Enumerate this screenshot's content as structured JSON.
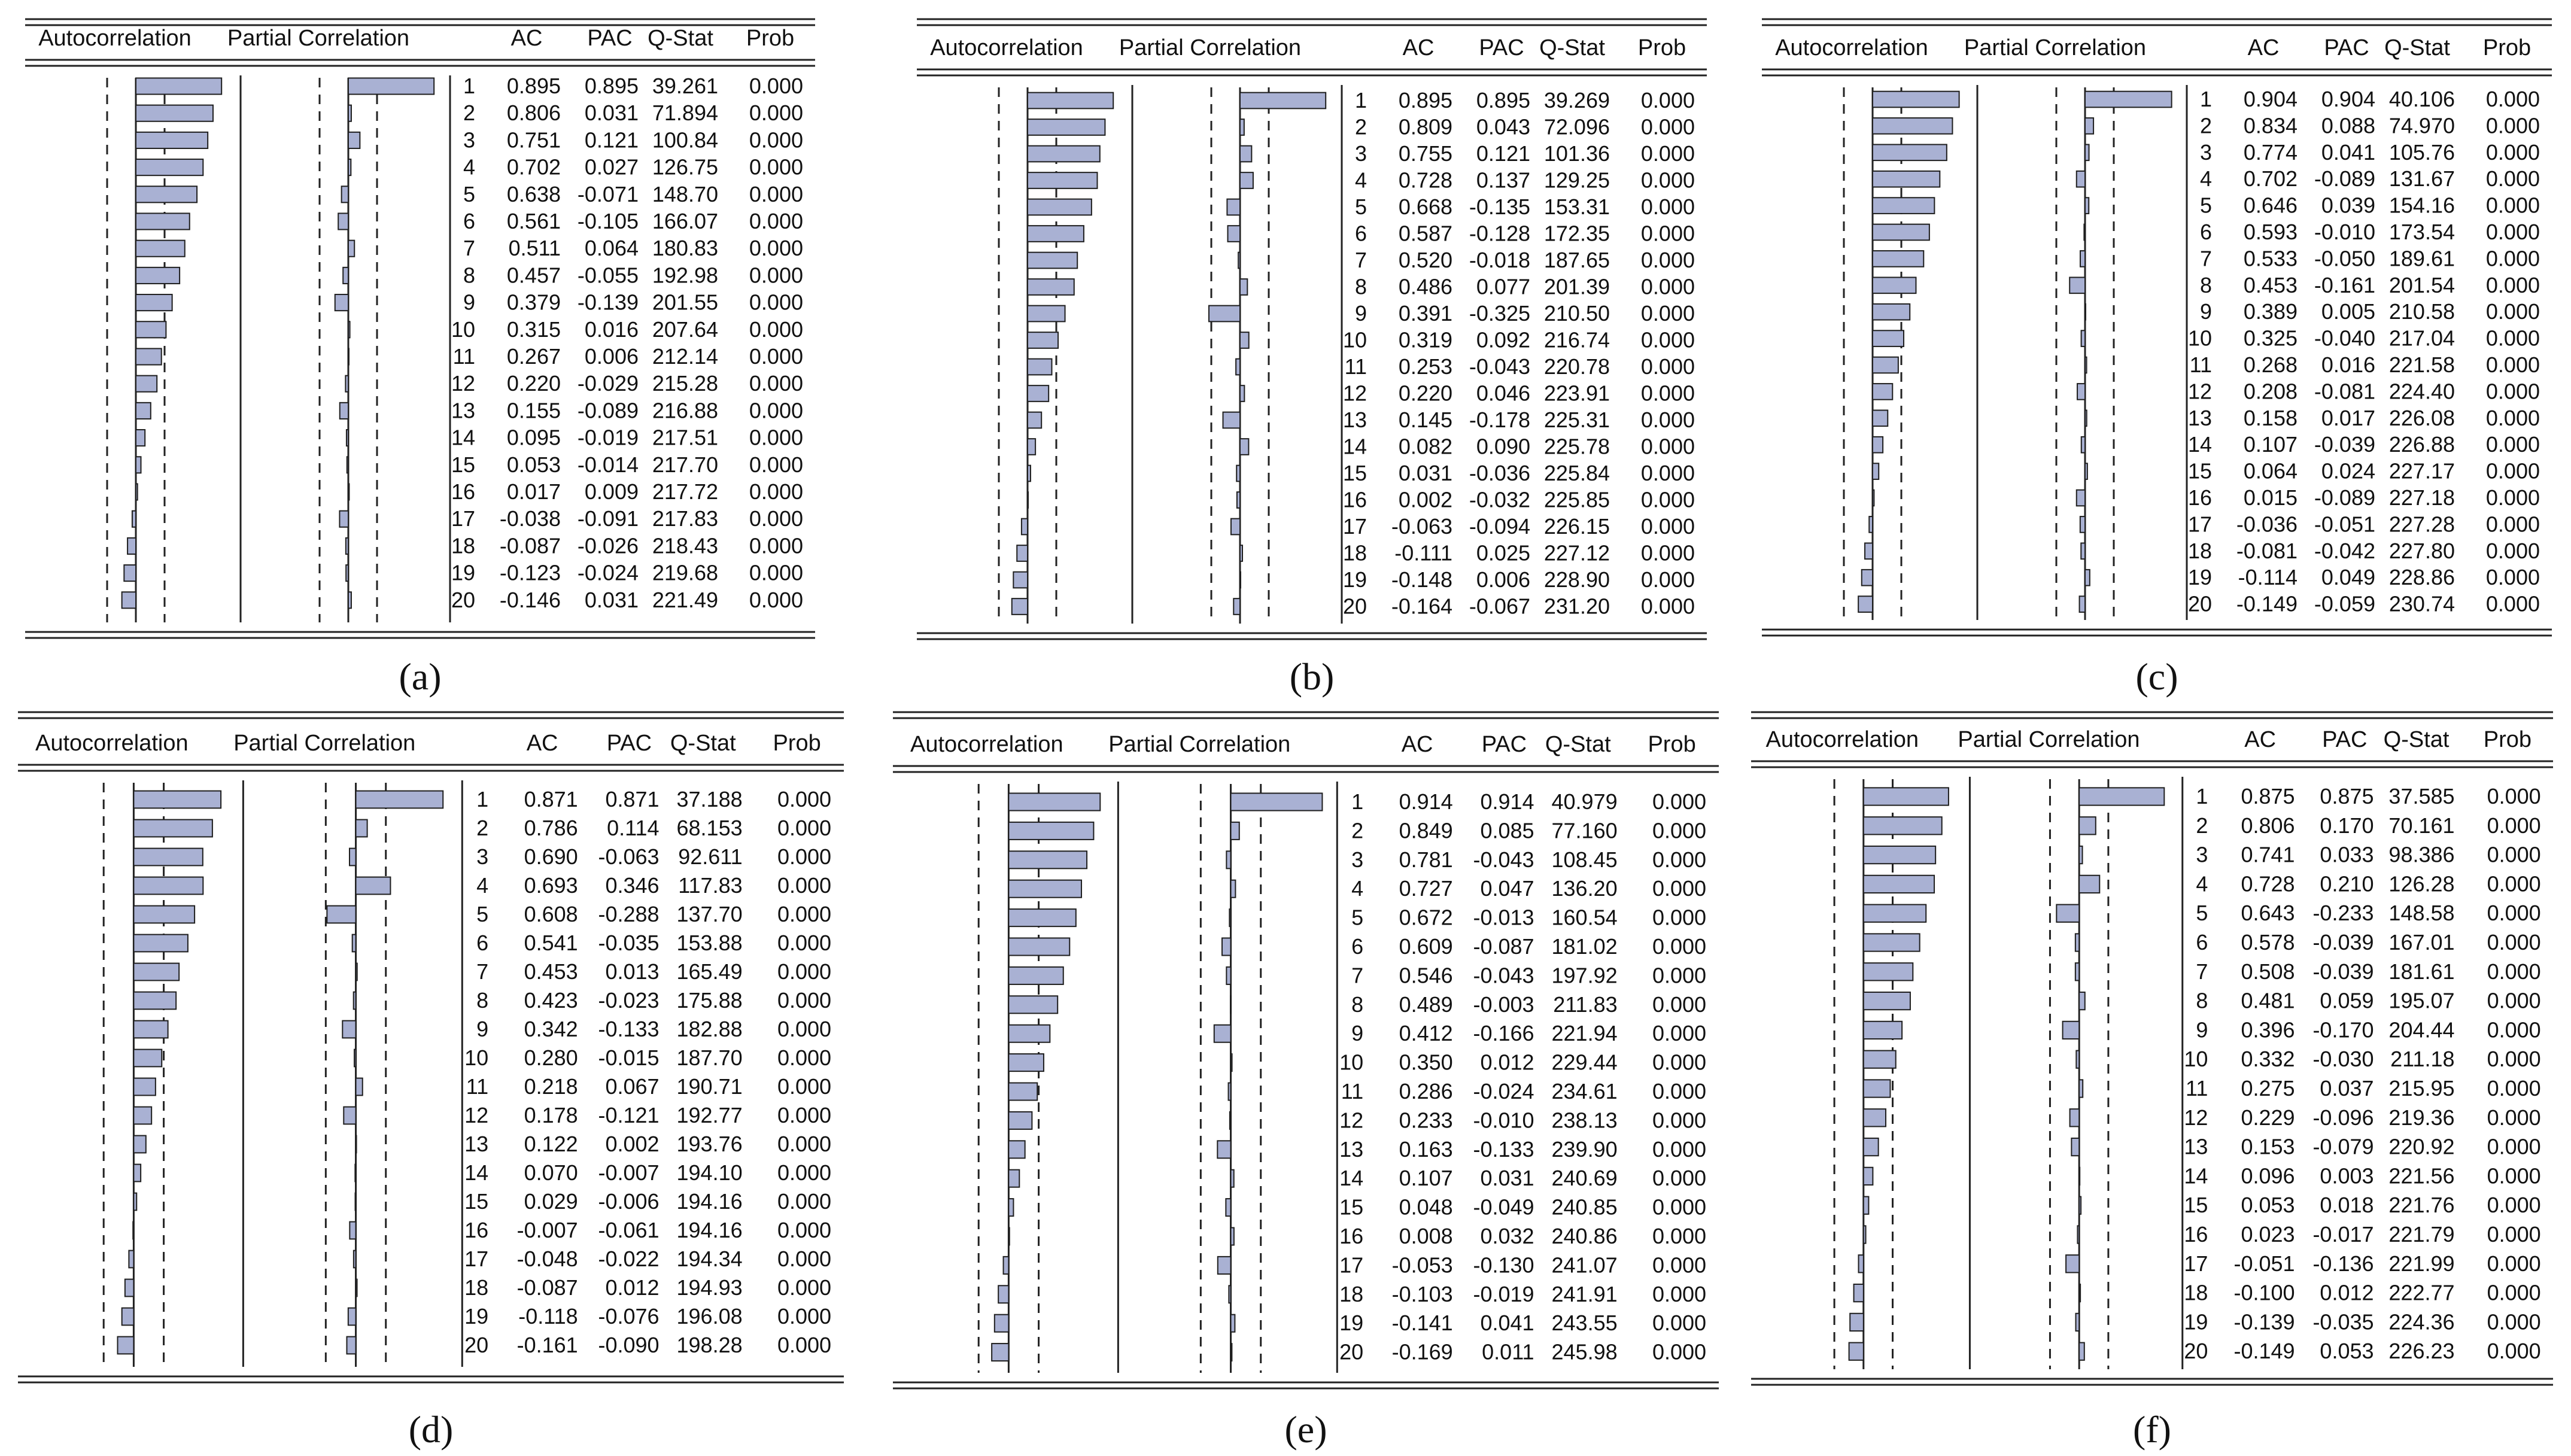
{
  "chart_data": [
    {
      "type": "table",
      "panel_label": "(a)",
      "headers": [
        "Autocorrelation",
        "Partial Correlation",
        "AC",
        "PAC",
        "Q-Stat",
        "Prob"
      ],
      "lags": [
        "1",
        "2",
        "3",
        "4",
        "5",
        "6",
        "7",
        "8",
        "9",
        "10",
        "11",
        "12",
        "13",
        "14",
        "15",
        "16",
        "17",
        "18",
        "19",
        "20"
      ],
      "ac": [
        "0.895",
        "0.806",
        "0.751",
        "0.702",
        "0.638",
        "0.561",
        "0.511",
        "0.457",
        "0.379",
        "0.315",
        "0.267",
        "0.220",
        "0.155",
        "0.095",
        "0.053",
        "0.017",
        "-0.038",
        "-0.087",
        "-0.123",
        "-0.146"
      ],
      "pac": [
        "0.895",
        "0.031",
        "0.121",
        "0.027",
        "-0.071",
        "-0.105",
        "0.064",
        "-0.055",
        "-0.139",
        "0.016",
        "0.006",
        "-0.029",
        "-0.089",
        "-0.019",
        "-0.014",
        "0.009",
        "-0.091",
        "-0.026",
        "-0.024",
        "0.031"
      ],
      "qstat": [
        "39.261",
        "71.894",
        "100.84",
        "126.75",
        "148.70",
        "166.07",
        "180.83",
        "192.98",
        "201.55",
        "207.64",
        "212.14",
        "215.28",
        "216.88",
        "217.51",
        "217.70",
        "217.72",
        "217.83",
        "218.43",
        "219.68",
        "221.49"
      ],
      "prob": [
        "0.000",
        "0.000",
        "0.000",
        "0.000",
        "0.000",
        "0.000",
        "0.000",
        "0.000",
        "0.000",
        "0.000",
        "0.000",
        "0.000",
        "0.000",
        "0.000",
        "0.000",
        "0.000",
        "0.000",
        "0.000",
        "0.000",
        "0.000"
      ],
      "bound": 0.3
    },
    {
      "type": "table",
      "panel_label": "(b)",
      "headers": [
        "Autocorrelation",
        "Partial Correlation",
        "AC",
        "PAC",
        "Q-Stat",
        "Prob"
      ],
      "lags": [
        "1",
        "2",
        "3",
        "4",
        "5",
        "6",
        "7",
        "8",
        "9",
        "10",
        "11",
        "12",
        "13",
        "14",
        "15",
        "16",
        "17",
        "18",
        "19",
        "20"
      ],
      "ac": [
        "0.895",
        "0.809",
        "0.755",
        "0.728",
        "0.668",
        "0.587",
        "0.520",
        "0.486",
        "0.391",
        "0.319",
        "0.253",
        "0.220",
        "0.145",
        "0.082",
        "0.031",
        "0.002",
        "-0.063",
        "-0.111",
        "-0.148",
        "-0.164"
      ],
      "pac": [
        "0.895",
        "0.043",
        "0.121",
        "0.137",
        "-0.135",
        "-0.128",
        "-0.018",
        "0.077",
        "-0.325",
        "0.092",
        "-0.043",
        "0.046",
        "-0.178",
        "0.090",
        "-0.036",
        "-0.032",
        "-0.094",
        "0.025",
        "0.006",
        "-0.067"
      ],
      "qstat": [
        "39.269",
        "72.096",
        "101.36",
        "129.25",
        "153.31",
        "172.35",
        "187.65",
        "201.39",
        "210.50",
        "216.74",
        "220.78",
        "223.91",
        "225.31",
        "225.78",
        "225.84",
        "225.85",
        "226.15",
        "227.12",
        "228.90",
        "231.20"
      ],
      "prob": [
        "0.000",
        "0.000",
        "0.000",
        "0.000",
        "0.000",
        "0.000",
        "0.000",
        "0.000",
        "0.000",
        "0.000",
        "0.000",
        "0.000",
        "0.000",
        "0.000",
        "0.000",
        "0.000",
        "0.000",
        "0.000",
        "0.000",
        "0.000"
      ],
      "bound": 0.3
    },
    {
      "type": "table",
      "panel_label": "(c)",
      "headers": [
        "Autocorrelation",
        "Partial Correlation",
        "AC",
        "PAC",
        "Q-Stat",
        "Prob"
      ],
      "lags": [
        "1",
        "2",
        "3",
        "4",
        "5",
        "6",
        "7",
        "8",
        "9",
        "10",
        "11",
        "12",
        "13",
        "14",
        "15",
        "16",
        "17",
        "18",
        "19",
        "20"
      ],
      "ac": [
        "0.904",
        "0.834",
        "0.774",
        "0.702",
        "0.646",
        "0.593",
        "0.533",
        "0.453",
        "0.389",
        "0.325",
        "0.268",
        "0.208",
        "0.158",
        "0.107",
        "0.064",
        "0.015",
        "-0.036",
        "-0.081",
        "-0.114",
        "-0.149"
      ],
      "pac": [
        "0.904",
        "0.088",
        "0.041",
        "-0.089",
        "0.039",
        "-0.010",
        "-0.050",
        "-0.161",
        "0.005",
        "-0.040",
        "0.016",
        "-0.081",
        "0.017",
        "-0.039",
        "0.024",
        "-0.089",
        "-0.051",
        "-0.042",
        "0.049",
        "-0.059"
      ],
      "qstat": [
        "40.106",
        "74.970",
        "105.76",
        "131.67",
        "154.16",
        "173.54",
        "189.61",
        "201.54",
        "210.58",
        "217.04",
        "221.58",
        "224.40",
        "226.08",
        "226.88",
        "227.17",
        "227.18",
        "227.28",
        "227.80",
        "228.86",
        "230.74"
      ],
      "prob": [
        "0.000",
        "0.000",
        "0.000",
        "0.000",
        "0.000",
        "0.000",
        "0.000",
        "0.000",
        "0.000",
        "0.000",
        "0.000",
        "0.000",
        "0.000",
        "0.000",
        "0.000",
        "0.000",
        "0.000",
        "0.000",
        "0.000",
        "0.000"
      ],
      "bound": 0.3
    },
    {
      "type": "table",
      "panel_label": "(d)",
      "headers": [
        "Autocorrelation",
        "Partial Correlation",
        "AC",
        "PAC",
        "Q-Stat",
        "Prob"
      ],
      "lags": [
        "1",
        "2",
        "3",
        "4",
        "5",
        "6",
        "7",
        "8",
        "9",
        "10",
        "11",
        "12",
        "13",
        "14",
        "15",
        "16",
        "17",
        "18",
        "19",
        "20"
      ],
      "ac": [
        "0.871",
        "0.786",
        "0.690",
        "0.693",
        "0.608",
        "0.541",
        "0.453",
        "0.423",
        "0.342",
        "0.280",
        "0.218",
        "0.178",
        "0.122",
        "0.070",
        "0.029",
        "-0.007",
        "-0.048",
        "-0.087",
        "-0.118",
        "-0.161"
      ],
      "pac": [
        "0.871",
        "0.114",
        "-0.063",
        "0.346",
        "-0.288",
        "-0.035",
        "0.013",
        "-0.023",
        "-0.133",
        "-0.015",
        "0.067",
        "-0.121",
        "0.002",
        "-0.007",
        "-0.006",
        "-0.061",
        "-0.022",
        "0.012",
        "-0.076",
        "-0.090"
      ],
      "qstat": [
        "37.188",
        "68.153",
        "92.611",
        "117.83",
        "137.70",
        "153.88",
        "165.49",
        "175.88",
        "182.88",
        "187.70",
        "190.71",
        "192.77",
        "193.76",
        "194.10",
        "194.16",
        "194.16",
        "194.34",
        "194.93",
        "196.08",
        "198.28"
      ],
      "prob": [
        "0.000",
        "0.000",
        "0.000",
        "0.000",
        "0.000",
        "0.000",
        "0.000",
        "0.000",
        "0.000",
        "0.000",
        "0.000",
        "0.000",
        "0.000",
        "0.000",
        "0.000",
        "0.000",
        "0.000",
        "0.000",
        "0.000",
        "0.000"
      ],
      "bound": 0.3
    },
    {
      "type": "table",
      "panel_label": "(e)",
      "headers": [
        "Autocorrelation",
        "Partial Correlation",
        "AC",
        "PAC",
        "Q-Stat",
        "Prob"
      ],
      "lags": [
        "1",
        "2",
        "3",
        "4",
        "5",
        "6",
        "7",
        "8",
        "9",
        "10",
        "11",
        "12",
        "13",
        "14",
        "15",
        "16",
        "17",
        "18",
        "19",
        "20"
      ],
      "ac": [
        "0.914",
        "0.849",
        "0.781",
        "0.727",
        "0.672",
        "0.609",
        "0.546",
        "0.489",
        "0.412",
        "0.350",
        "0.286",
        "0.233",
        "0.163",
        "0.107",
        "0.048",
        "0.008",
        "-0.053",
        "-0.103",
        "-0.141",
        "-0.169"
      ],
      "pac": [
        "0.914",
        "0.085",
        "-0.043",
        "0.047",
        "-0.013",
        "-0.087",
        "-0.043",
        "-0.003",
        "-0.166",
        "0.012",
        "-0.024",
        "-0.010",
        "-0.133",
        "0.031",
        "-0.049",
        "0.032",
        "-0.130",
        "-0.019",
        "0.041",
        "0.011"
      ],
      "qstat": [
        "40.979",
        "77.160",
        "108.45",
        "136.20",
        "160.54",
        "181.02",
        "197.92",
        "211.83",
        "221.94",
        "229.44",
        "234.61",
        "238.13",
        "239.90",
        "240.69",
        "240.85",
        "240.86",
        "241.07",
        "241.91",
        "243.55",
        "245.98"
      ],
      "prob": [
        "0.000",
        "0.000",
        "0.000",
        "0.000",
        "0.000",
        "0.000",
        "0.000",
        "0.000",
        "0.000",
        "0.000",
        "0.000",
        "0.000",
        "0.000",
        "0.000",
        "0.000",
        "0.000",
        "0.000",
        "0.000",
        "0.000",
        "0.000"
      ],
      "bound": 0.3
    },
    {
      "type": "table",
      "panel_label": "(f)",
      "headers": [
        "Autocorrelation",
        "Partial Correlation",
        "AC",
        "PAC",
        "Q-Stat",
        "Prob"
      ],
      "lags": [
        "1",
        "2",
        "3",
        "4",
        "5",
        "6",
        "7",
        "8",
        "9",
        "10",
        "11",
        "12",
        "13",
        "14",
        "15",
        "16",
        "17",
        "18",
        "19",
        "20"
      ],
      "ac": [
        "0.875",
        "0.806",
        "0.741",
        "0.728",
        "0.643",
        "0.578",
        "0.508",
        "0.481",
        "0.396",
        "0.332",
        "0.275",
        "0.229",
        "0.153",
        "0.096",
        "0.053",
        "0.023",
        "-0.051",
        "-0.100",
        "-0.139",
        "-0.149"
      ],
      "pac": [
        "0.875",
        "0.170",
        "0.033",
        "0.210",
        "-0.233",
        "-0.039",
        "-0.039",
        "0.059",
        "-0.170",
        "-0.030",
        "0.037",
        "-0.096",
        "-0.079",
        "0.003",
        "0.018",
        "-0.017",
        "-0.136",
        "0.012",
        "-0.035",
        "0.053"
      ],
      "qstat": [
        "37.585",
        "70.161",
        "98.386",
        "126.28",
        "148.58",
        "167.01",
        "181.61",
        "195.07",
        "204.44",
        "211.18",
        "215.95",
        "219.36",
        "220.92",
        "221.56",
        "221.76",
        "221.79",
        "221.99",
        "222.77",
        "224.36",
        "226.23"
      ],
      "prob": [
        "0.000",
        "0.000",
        "0.000",
        "0.000",
        "0.000",
        "0.000",
        "0.000",
        "0.000",
        "0.000",
        "0.000",
        "0.000",
        "0.000",
        "0.000",
        "0.000",
        "0.000",
        "0.000",
        "0.000",
        "0.000",
        "0.000",
        "0.000"
      ],
      "bound": 0.3
    }
  ]
}
